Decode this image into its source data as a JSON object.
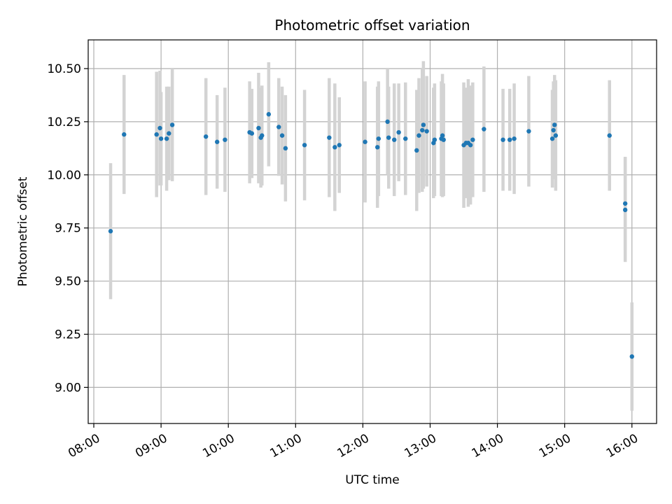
{
  "chart_data": {
    "type": "scatter",
    "title": "Photometric offset variation",
    "xlabel": "UTC time",
    "ylabel": "Photometric offset",
    "x_tick_labels": [
      "08:00",
      "09:00",
      "10:00",
      "11:00",
      "12:00",
      "13:00",
      "14:00",
      "15:00",
      "16:00"
    ],
    "y_tick_labels": [
      "9.00",
      "9.25",
      "9.50",
      "9.75",
      "10.00",
      "10.25",
      "10.50"
    ],
    "y_ticks": [
      9.0,
      9.25,
      9.5,
      9.75,
      10.0,
      10.25,
      10.5
    ],
    "xlim": [
      "07:55",
      "16:22"
    ],
    "ylim": [
      8.83,
      10.635
    ],
    "grid": true,
    "colors": {
      "point": "#1f77b4",
      "errorbar": "#d3d3d3",
      "grid": "#b0b0b0"
    },
    "series": [
      {
        "x": [
          "08:15",
          "08:27",
          "08:56",
          "08:59",
          "09:00",
          "09:05",
          "09:07",
          "09:10",
          "09:40",
          "09:50",
          "09:57",
          "10:19",
          "10:21",
          "10:27",
          "10:29",
          "10:30",
          "10:36",
          "10:45",
          "10:48",
          "10:51",
          "11:08",
          "11:30",
          "11:35",
          "11:39",
          "12:02",
          "12:13",
          "12:14",
          "12:22",
          "12:23",
          "12:28",
          "12:32",
          "12:38",
          "12:48",
          "12:50",
          "12:53",
          "12:54",
          "12:57",
          "13:03",
          "13:04",
          "13:10",
          "13:11",
          "13:12",
          "13:30",
          "13:32",
          "13:34",
          "13:36",
          "13:38",
          "13:48",
          "14:05",
          "14:11",
          "14:15",
          "14:28",
          "14:49",
          "14:50",
          "14:51",
          "14:52",
          "15:40",
          "15:54",
          "15:54",
          "16:00"
        ],
        "y": [
          9.735,
          10.19,
          10.19,
          10.22,
          10.17,
          10.17,
          10.195,
          10.235,
          10.18,
          10.155,
          10.165,
          10.2,
          10.195,
          10.22,
          10.175,
          10.185,
          10.285,
          10.225,
          10.185,
          10.125,
          10.14,
          10.175,
          10.13,
          10.14,
          10.155,
          10.13,
          10.17,
          10.25,
          10.175,
          10.165,
          10.2,
          10.17,
          10.115,
          10.185,
          10.21,
          10.235,
          10.205,
          10.15,
          10.165,
          10.17,
          10.185,
          10.165,
          10.14,
          10.15,
          10.15,
          10.14,
          10.165,
          10.215,
          10.165,
          10.165,
          10.17,
          10.205,
          10.17,
          10.21,
          10.235,
          10.185,
          10.185,
          9.865,
          9.835,
          9.145
        ],
        "yerr": [
          0.32,
          0.28,
          0.295,
          0.27,
          0.22,
          0.245,
          0.22,
          0.265,
          0.275,
          0.22,
          0.245,
          0.24,
          0.21,
          0.26,
          0.235,
          0.235,
          0.245,
          0.23,
          0.23,
          0.25,
          0.26,
          0.28,
          0.3,
          0.225,
          0.285,
          0.285,
          0.27,
          0.25,
          0.24,
          0.265,
          0.23,
          0.265,
          0.285,
          0.27,
          0.29,
          0.3,
          0.26,
          0.26,
          0.265,
          0.27,
          0.29,
          0.265,
          0.295,
          0.26,
          0.3,
          0.28,
          0.27,
          0.295,
          0.24,
          0.24,
          0.26,
          0.26,
          0.23,
          0.23,
          0.235,
          0.26,
          0.26,
          0.22,
          0.245,
          0.255
        ]
      }
    ]
  }
}
